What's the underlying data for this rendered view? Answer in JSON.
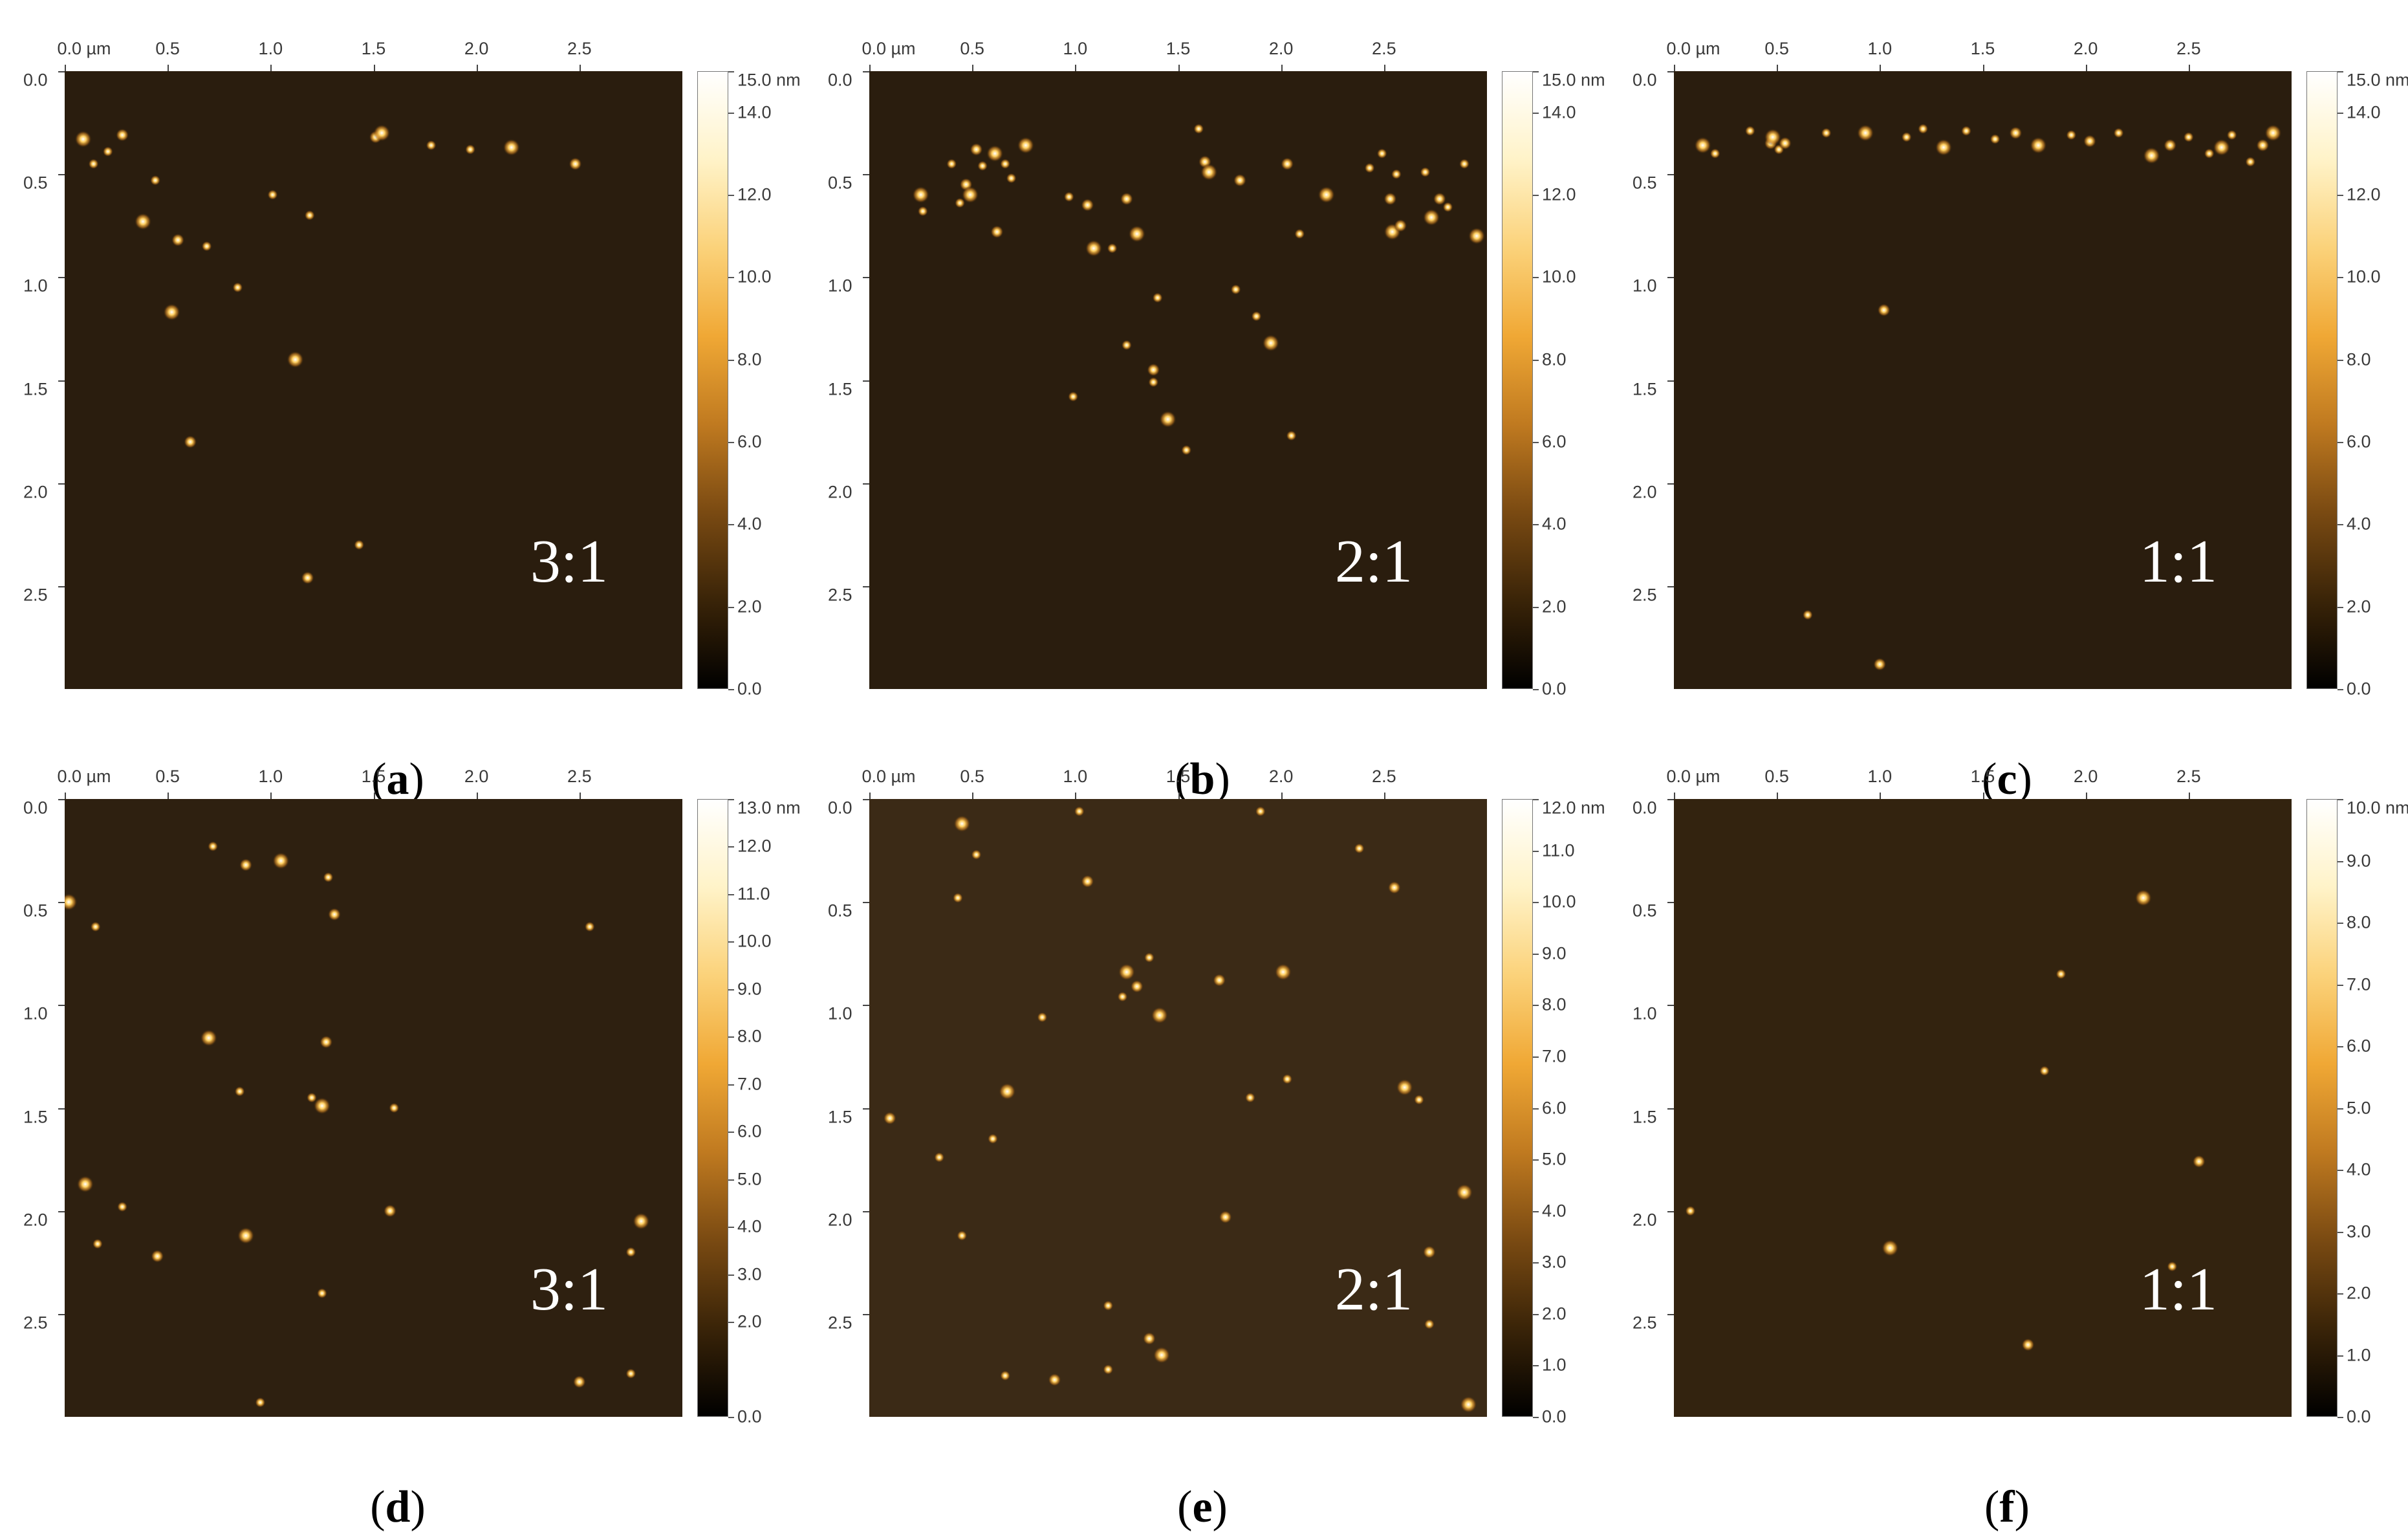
{
  "figure": {
    "x_tick_labels": [
      "0.0 µm",
      "0.5",
      "1.0",
      "1.5",
      "2.0",
      "2.5"
    ],
    "y_tick_labels": [
      "0.0",
      "0.5",
      "1.0",
      "1.5",
      "2.0",
      "2.5"
    ],
    "panels": [
      {
        "letter": "a",
        "ratio_label": "3:1",
        "colorbar_labels": [
          "15.0 nm",
          "14.0",
          "12.0",
          "10.0",
          "8.0",
          "6.0",
          "4.0",
          "2.0",
          "0.0"
        ],
        "colorbar_values": [
          15,
          14,
          12,
          10,
          8,
          6,
          4,
          2,
          0
        ],
        "colorbar_max": 15,
        "background_color": "#2a1d0e",
        "particles": [
          [
            0.09,
            0.33
          ],
          [
            0.14,
            0.45
          ],
          [
            0.21,
            0.39
          ],
          [
            0.28,
            0.31
          ],
          [
            0.38,
            0.73
          ],
          [
            0.44,
            0.53
          ],
          [
            0.55,
            0.82
          ],
          [
            0.69,
            0.85
          ],
          [
            0.52,
            1.17
          ],
          [
            0.61,
            1.8
          ],
          [
            0.84,
            1.05
          ],
          [
            1.01,
            0.6
          ],
          [
            1.12,
            1.4
          ],
          [
            1.19,
            0.7
          ],
          [
            1.43,
            2.3
          ],
          [
            1.51,
            0.32
          ],
          [
            1.54,
            0.3
          ],
          [
            1.78,
            0.36
          ],
          [
            1.18,
            2.46
          ],
          [
            1.97,
            0.38
          ],
          [
            2.17,
            0.37
          ],
          [
            2.48,
            0.45
          ]
        ]
      },
      {
        "letter": "b",
        "ratio_label": "2:1",
        "colorbar_labels": [
          "15.0 nm",
          "14.0",
          "12.0",
          "10.0",
          "8.0",
          "6.0",
          "4.0",
          "2.0",
          "0.0"
        ],
        "colorbar_values": [
          15,
          14,
          12,
          10,
          8,
          6,
          4,
          2,
          0
        ],
        "colorbar_max": 15,
        "background_color": "#2a1d0e",
        "particles": [
          [
            0.25,
            0.6
          ],
          [
            0.26,
            0.68
          ],
          [
            0.4,
            0.45
          ],
          [
            0.47,
            0.55
          ],
          [
            0.49,
            0.6
          ],
          [
            0.44,
            0.64
          ],
          [
            0.52,
            0.38
          ],
          [
            0.55,
            0.46
          ],
          [
            0.61,
            0.4
          ],
          [
            0.62,
            0.78
          ],
          [
            0.66,
            0.45
          ],
          [
            0.69,
            0.52
          ],
          [
            0.76,
            0.36
          ],
          [
            0.97,
            0.61
          ],
          [
            0.99,
            1.58
          ],
          [
            1.06,
            0.65
          ],
          [
            1.09,
            0.86
          ],
          [
            1.18,
            0.86
          ],
          [
            1.25,
            0.62
          ],
          [
            1.25,
            1.33
          ],
          [
            1.3,
            0.79
          ],
          [
            1.38,
            1.45
          ],
          [
            1.38,
            1.51
          ],
          [
            1.4,
            1.1
          ],
          [
            1.45,
            1.69
          ],
          [
            1.54,
            1.84
          ],
          [
            1.6,
            0.28
          ],
          [
            1.63,
            0.44
          ],
          [
            1.65,
            0.49
          ],
          [
            1.78,
            1.06
          ],
          [
            1.8,
            0.53
          ],
          [
            1.88,
            1.19
          ],
          [
            1.95,
            1.32
          ],
          [
            2.03,
            0.45
          ],
          [
            2.05,
            1.77
          ],
          [
            2.09,
            0.79
          ],
          [
            2.22,
            0.6
          ],
          [
            2.43,
            0.47
          ],
          [
            2.49,
            0.4
          ],
          [
            2.53,
            0.62
          ],
          [
            2.54,
            0.78
          ],
          [
            2.56,
            0.5
          ],
          [
            2.58,
            0.75
          ],
          [
            2.7,
            0.49
          ],
          [
            2.73,
            0.71
          ],
          [
            2.77,
            0.62
          ],
          [
            2.81,
            0.66
          ],
          [
            2.89,
            0.45
          ],
          [
            2.95,
            0.8
          ]
        ]
      },
      {
        "letter": "c",
        "ratio_label": "1:1",
        "colorbar_labels": [
          "15.0 nm",
          "14.0",
          "12.0",
          "10.0",
          "8.0",
          "6.0",
          "4.0",
          "2.0",
          "0.0"
        ],
        "colorbar_values": [
          15,
          14,
          12,
          10,
          8,
          6,
          4,
          2,
          0
        ],
        "colorbar_max": 15,
        "background_color": "#2a1d0e",
        "particles": [
          [
            0.14,
            0.36
          ],
          [
            0.2,
            0.4
          ],
          [
            0.37,
            0.29
          ],
          [
            0.47,
            0.35
          ],
          [
            0.48,
            0.32
          ],
          [
            0.51,
            0.38
          ],
          [
            0.54,
            0.35
          ],
          [
            0.74,
            0.3
          ],
          [
            0.93,
            0.3
          ],
          [
            1.02,
            1.16
          ],
          [
            1.13,
            0.32
          ],
          [
            1.21,
            0.28
          ],
          [
            1.31,
            0.37
          ],
          [
            1.42,
            0.29
          ],
          [
            1.56,
            0.33
          ],
          [
            1.66,
            0.3
          ],
          [
            1.77,
            0.36
          ],
          [
            1.93,
            0.31
          ],
          [
            2.02,
            0.34
          ],
          [
            2.16,
            0.3
          ],
          [
            2.32,
            0.41
          ],
          [
            2.41,
            0.36
          ],
          [
            2.5,
            0.32
          ],
          [
            2.6,
            0.4
          ],
          [
            2.66,
            0.37
          ],
          [
            2.71,
            0.31
          ],
          [
            2.8,
            0.44
          ],
          [
            2.86,
            0.36
          ],
          [
            2.91,
            0.3
          ],
          [
            0.65,
            2.64
          ],
          [
            1.0,
            2.88
          ]
        ]
      },
      {
        "letter": "d",
        "ratio_label": "3:1",
        "colorbar_labels": [
          "13.0 nm",
          "12.0",
          "11.0",
          "10.0",
          "9.0",
          "8.0",
          "7.0",
          "6.0",
          "5.0",
          "4.0",
          "3.0",
          "2.0",
          "0.0"
        ],
        "colorbar_values": [
          13,
          12,
          11,
          10,
          9,
          8,
          7,
          6,
          5,
          4,
          3,
          2,
          0
        ],
        "colorbar_max": 13,
        "background_color": "#2e2010",
        "particles": [
          [
            0.02,
            0.5
          ],
          [
            0.15,
            0.62
          ],
          [
            0.72,
            0.23
          ],
          [
            0.88,
            0.32
          ],
          [
            1.05,
            0.3
          ],
          [
            1.28,
            0.38
          ],
          [
            1.31,
            0.56
          ],
          [
            2.55,
            0.62
          ],
          [
            0.7,
            1.16
          ],
          [
            1.27,
            1.18
          ],
          [
            0.85,
            1.42
          ],
          [
            1.2,
            1.45
          ],
          [
            1.25,
            1.49
          ],
          [
            1.6,
            1.5
          ],
          [
            0.16,
            2.16
          ],
          [
            0.45,
            2.22
          ],
          [
            0.88,
            2.12
          ],
          [
            1.25,
            2.4
          ],
          [
            1.58,
            2.0
          ],
          [
            2.75,
            2.2
          ],
          [
            2.8,
            2.05
          ],
          [
            2.5,
            2.83
          ],
          [
            2.75,
            2.79
          ],
          [
            0.95,
            2.93
          ],
          [
            0.1,
            1.87
          ],
          [
            0.28,
            1.98
          ]
        ]
      },
      {
        "letter": "e",
        "ratio_label": "2:1",
        "colorbar_labels": [
          "12.0 nm",
          "11.0",
          "10.0",
          "9.0",
          "8.0",
          "7.0",
          "6.0",
          "5.0",
          "4.0",
          "3.0",
          "2.0",
          "1.0",
          "0.0"
        ],
        "colorbar_values": [
          12,
          11,
          10,
          9,
          8,
          7,
          6,
          5,
          4,
          3,
          2,
          1,
          0
        ],
        "colorbar_max": 12,
        "background_color": "#3b2a16",
        "particles": [
          [
            0.45,
            0.12
          ],
          [
            0.52,
            0.27
          ],
          [
            1.02,
            0.06
          ],
          [
            1.06,
            0.4
          ],
          [
            1.25,
            0.84
          ],
          [
            1.23,
            0.96
          ],
          [
            1.3,
            0.91
          ],
          [
            1.36,
            0.77
          ],
          [
            1.41,
            1.05
          ],
          [
            1.7,
            0.88
          ],
          [
            1.9,
            0.06
          ],
          [
            1.85,
            1.45
          ],
          [
            2.01,
            0.84
          ],
          [
            2.03,
            1.36
          ],
          [
            2.38,
            0.24
          ],
          [
            2.55,
            0.43
          ],
          [
            2.6,
            1.4
          ],
          [
            2.67,
            1.46
          ],
          [
            2.72,
            2.2
          ],
          [
            2.72,
            2.55
          ],
          [
            2.89,
            1.91
          ],
          [
            1.73,
            2.03
          ],
          [
            0.45,
            2.12
          ],
          [
            0.6,
            1.65
          ],
          [
            0.67,
            1.42
          ],
          [
            0.84,
            1.06
          ],
          [
            1.16,
            2.46
          ],
          [
            1.36,
            2.62
          ],
          [
            1.42,
            2.7
          ],
          [
            0.66,
            2.8
          ],
          [
            0.9,
            2.82
          ],
          [
            1.16,
            2.77
          ],
          [
            2.91,
            2.94
          ],
          [
            0.1,
            1.55
          ],
          [
            0.34,
            1.74
          ],
          [
            0.43,
            0.48
          ]
        ]
      },
      {
        "letter": "f",
        "ratio_label": "1:1",
        "colorbar_labels": [
          "10.0 nm",
          "9.0",
          "8.0",
          "7.0",
          "6.0",
          "5.0",
          "4.0",
          "3.0",
          "2.0",
          "1.0",
          "0.0"
        ],
        "colorbar_values": [
          10,
          9,
          8,
          7,
          6,
          5,
          4,
          3,
          2,
          1,
          0
        ],
        "colorbar_max": 10,
        "background_color": "#33230f",
        "particles": [
          [
            2.28,
            0.48
          ],
          [
            1.88,
            0.85
          ],
          [
            1.8,
            1.32
          ],
          [
            2.55,
            1.76
          ],
          [
            1.05,
            2.18
          ],
          [
            2.42,
            2.27
          ],
          [
            1.72,
            2.65
          ],
          [
            0.08,
            2.0
          ]
        ]
      }
    ],
    "colors": {
      "colormap": [
        "#000000",
        "#3a2408",
        "#7a4a12",
        "#c07a20",
        "#f0a835",
        "#fbd27a",
        "#fff3c8",
        "#ffffff"
      ],
      "particle": "#ffd061"
    }
  }
}
